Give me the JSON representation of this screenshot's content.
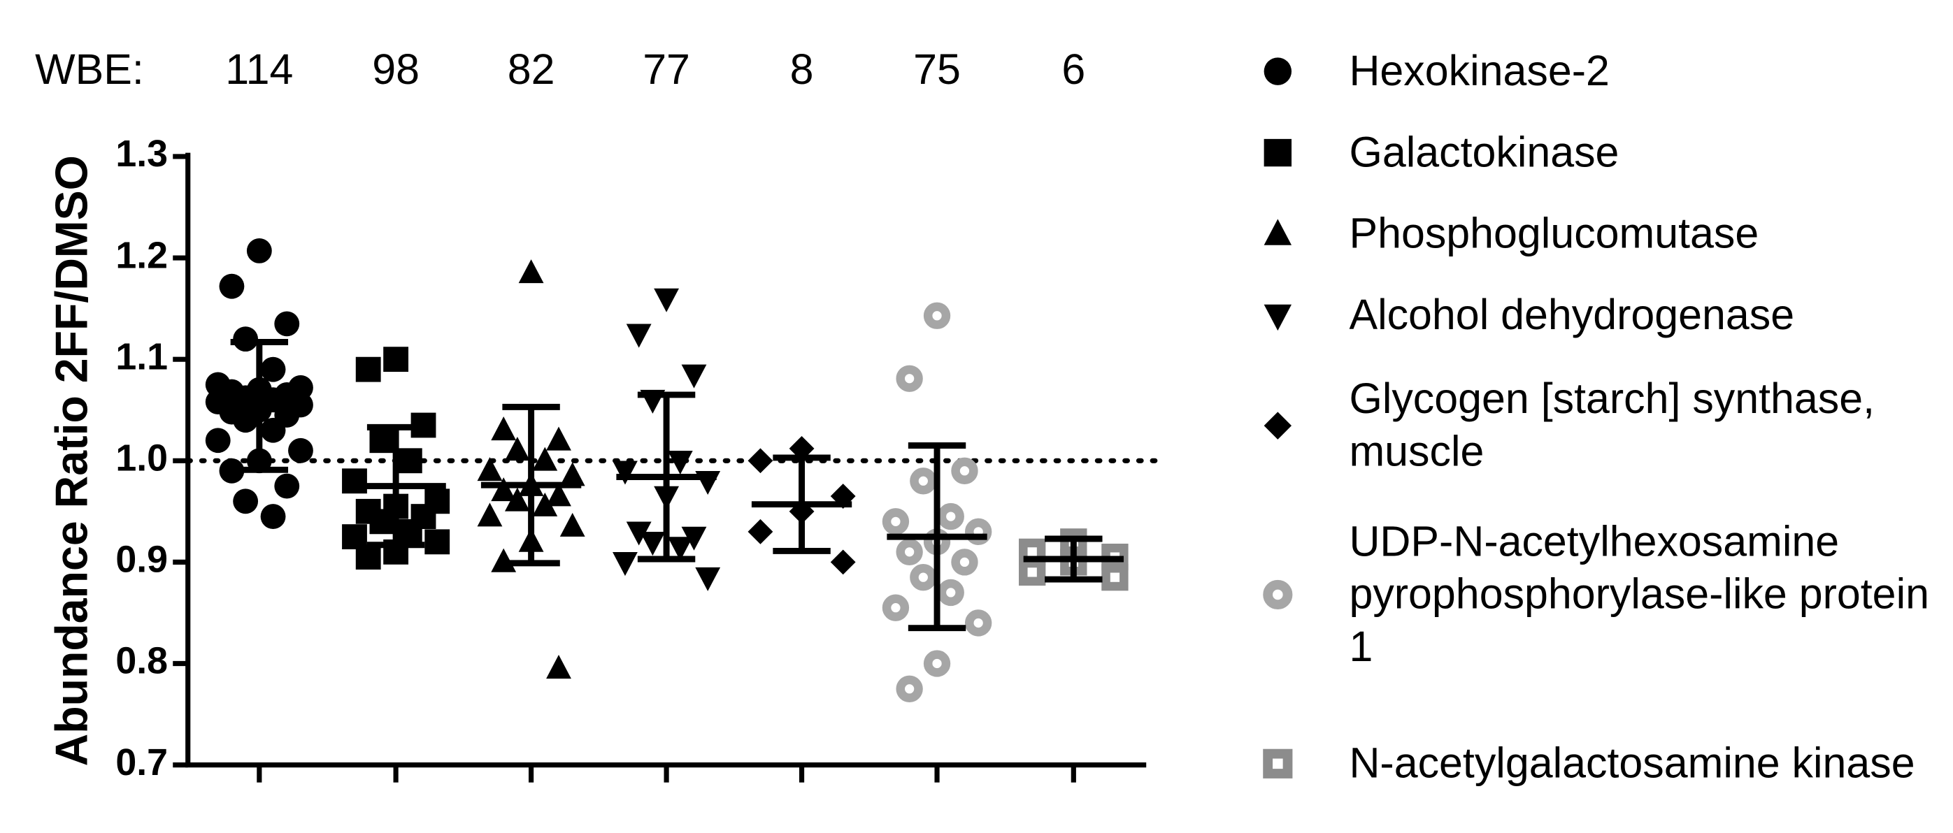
{
  "chart_data": {
    "type": "dot",
    "ylabel": "Abundance Ratio 2FF/DMSO",
    "wbe_label": "WBE:",
    "ylim": [
      0.7,
      1.3
    ],
    "yticks": [
      0.7,
      0.8,
      0.9,
      {
        "value": 1,
        "label": "1.0"
      },
      1.1,
      1.2,
      1.3
    ],
    "reference_line": 1,
    "series": [
      {
        "name": "Hexokinase-2",
        "wbe": 114,
        "color": "#000000",
        "marker": "circle",
        "filled": true,
        "mean": 1.054,
        "sd": 0.063,
        "values": [
          1.207,
          1.172,
          1.135,
          1.12,
          1.09,
          1.075,
          1.072,
          1.07,
          1.068,
          1.065,
          1.062,
          1.06,
          1.058,
          1.055,
          1.05,
          1.048,
          1.045,
          1.04,
          1.03,
          1.02,
          1.01,
          1.0,
          0.99,
          0.975,
          0.96,
          0.945
        ]
      },
      {
        "name": "Galactokinase",
        "wbe": 98,
        "color": "#000000",
        "marker": "square",
        "filled": true,
        "mean": 0.975,
        "sd": 0.058,
        "values": [
          1.1,
          1.09,
          1.035,
          1.02,
          1.0,
          0.98,
          0.96,
          0.955,
          0.95,
          0.945,
          0.94,
          0.93,
          0.925,
          0.92,
          0.91,
          0.905
        ]
      },
      {
        "name": "Phosphoglucomutase",
        "wbe": 82,
        "color": "#000000",
        "marker": "triangle",
        "filled": true,
        "mean": 0.976,
        "sd": 0.077,
        "values": [
          1.185,
          1.03,
          1.02,
          1.01,
          1.0,
          0.99,
          0.985,
          0.975,
          0.97,
          0.965,
          0.96,
          0.955,
          0.945,
          0.935,
          0.92,
          0.9,
          0.795
        ]
      },
      {
        "name": "Alcohol dehydrogenase",
        "wbe": 77,
        "color": "#000000",
        "marker": "triangle-down",
        "filled": true,
        "mean": 0.984,
        "sd": 0.081,
        "values": [
          1.16,
          1.125,
          1.085,
          1.06,
          1.0,
          0.99,
          0.98,
          0.965,
          0.93,
          0.925,
          0.92,
          0.915,
          0.9,
          0.885
        ]
      },
      {
        "name": "Glycogen [starch] synthase, muscle",
        "wbe": 8,
        "color": "#000000",
        "marker": "diamond",
        "filled": true,
        "mean": 0.957,
        "sd": 0.046,
        "values": [
          1.012,
          1.0,
          0.965,
          0.95,
          0.93,
          0.9
        ]
      },
      {
        "name": "UDP-N-acetylhexosamine pyrophosphorylase-like protein 1",
        "wbe": 75,
        "color": "#a6a6a6",
        "marker": "circle",
        "filled": false,
        "mean": 0.925,
        "sd": 0.09,
        "values": [
          1.143,
          1.081,
          0.99,
          0.98,
          0.945,
          0.94,
          0.93,
          0.92,
          0.91,
          0.9,
          0.885,
          0.87,
          0.855,
          0.84,
          0.8,
          0.775
        ]
      },
      {
        "name": "N-acetylgalactosamine kinase",
        "wbe": 6,
        "color": "#8c8c8c",
        "marker": "square",
        "filled": false,
        "mean": 0.903,
        "sd": 0.02,
        "values": [
          0.92,
          0.91,
          0.905,
          0.9,
          0.89,
          0.885
        ]
      }
    ]
  }
}
